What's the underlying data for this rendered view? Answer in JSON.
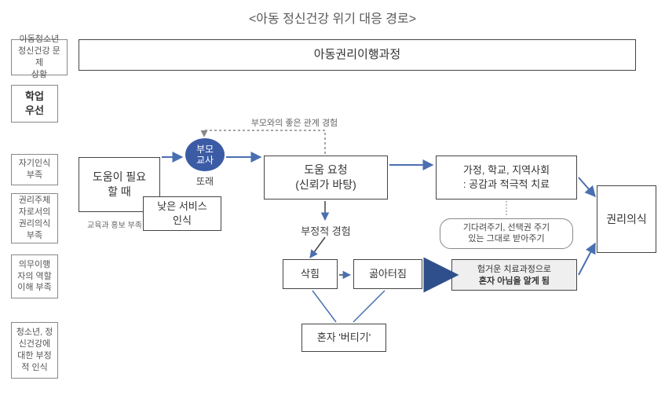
{
  "title": "<아동 정신건강 위기 대응 경로>",
  "header": {
    "process_title": "아동권리이행과정",
    "context_label": "아동청소년\n정신건강 문제\n상황"
  },
  "side": {
    "academic": "학업\n우선",
    "selfaware": "자기인식\n부족",
    "rights": "권리주체\n자로서의\n권리의식\n부족",
    "duty": "의무이행\n자의 역할\n이해 부족",
    "youth": "청소년, 정\n신건강에\n대한 부정\n적 인식"
  },
  "need": "도움이 필요\n할 때",
  "actors": {
    "ellipse": "부모\n교사",
    "peer": "또래"
  },
  "lowservice": {
    "text": "낮은 서비스\n인식",
    "note": "교육과 홍보 부족"
  },
  "relation_note": "부모와의 좋은 관계 경험",
  "request": "도움 요청\n(신뢰가 바탕)",
  "negative": "부정적 경험",
  "fester": "삭힘",
  "burst": "곪아터짐",
  "endure": "혼자 '버티기'",
  "support": "가정, 학교, 지역사회\n: 공감과 적극적 치료",
  "support_note": "기다려주기, 선택권 주기\n있는 그대로 받아주기",
  "outcome": {
    "line1": "험거운 치료과정으로",
    "line2": "혼자 아님을 알게 됨"
  },
  "rights_awareness": "권리의식",
  "colors": {
    "line": "#4a6fb0",
    "dotted": "#888888",
    "ellipse": "#3b5ba5",
    "box_border": "#444444",
    "thick_arrow": "#2f4e8c"
  }
}
